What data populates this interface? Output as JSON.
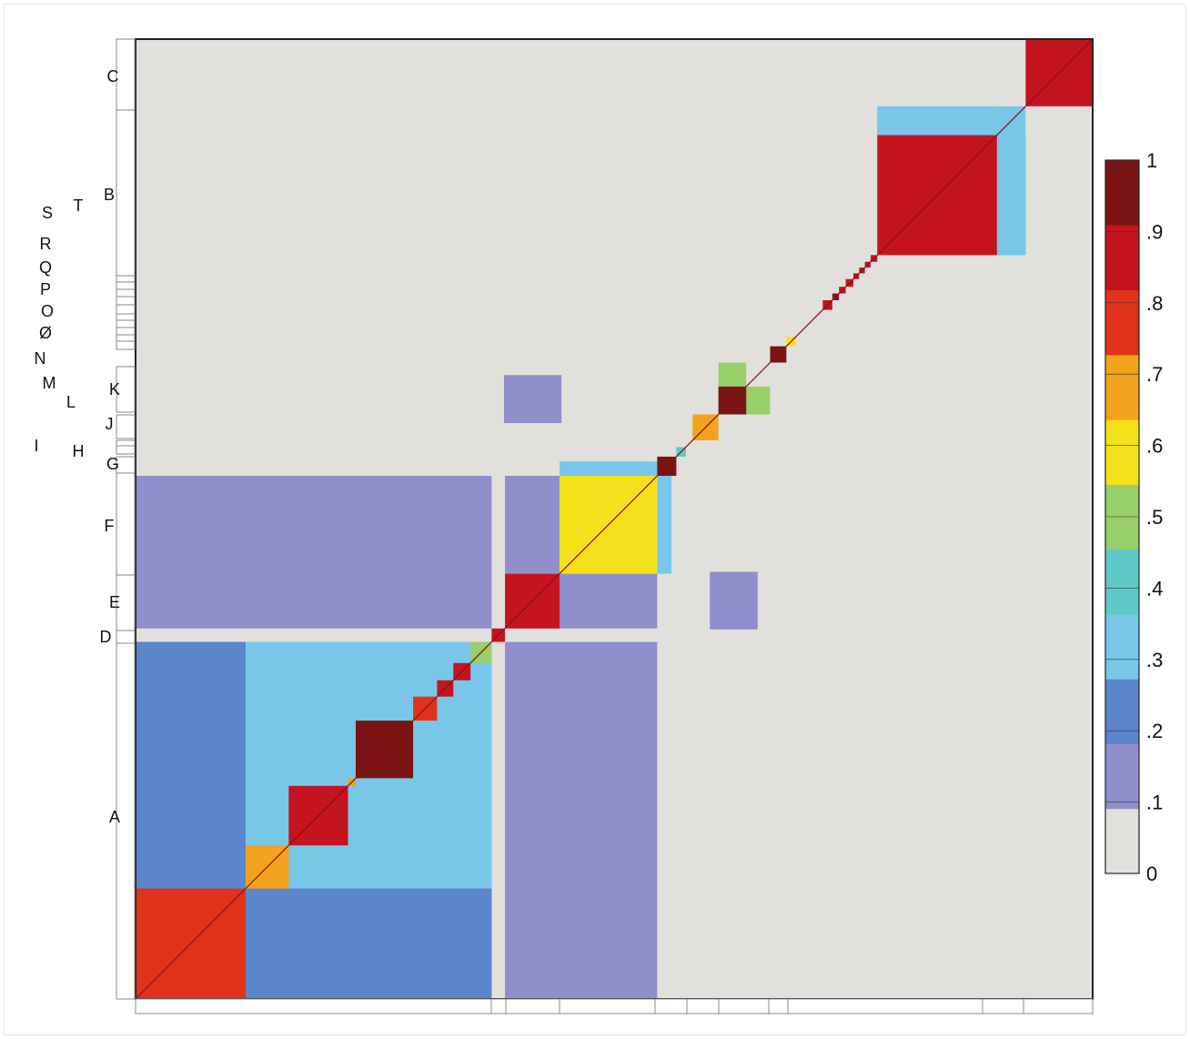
{
  "chart_data": {
    "type": "heatmap",
    "title": "",
    "xlabel": "",
    "ylabel": "",
    "matrix_note": "symmetric similarity matrix; clusters along diagonal, listed bottom-left to top-right",
    "colorbar": {
      "range": [
        0,
        1
      ],
      "tick_labels": [
        "1",
        ".9",
        ".8",
        ".7",
        ".6",
        ".5",
        ".4",
        ".3",
        ".2",
        ".1",
        "0"
      ],
      "tick_values": [
        1,
        0.9,
        0.8,
        0.7,
        0.6,
        0.5,
        0.4,
        0.3,
        0.2,
        0.1,
        0
      ],
      "colors": [
        "#e2e0dc",
        "#8f8fcc",
        "#5b86cc",
        "#79c7e8",
        "#5fc9c9",
        "#97cf6a",
        "#f4e11a",
        "#f2a21c",
        "#e2321c",
        "#c41420",
        "#7a1414"
      ]
    },
    "background_value": 0.02,
    "clusters": [
      {
        "label": "",
        "start": 0.0,
        "end": 0.115,
        "value": 0.75
      },
      {
        "label": "",
        "start": 0.115,
        "end": 0.16,
        "value": 0.68
      },
      {
        "label": "",
        "start": 0.16,
        "end": 0.222,
        "value": 0.93
      },
      {
        "label": "",
        "start": 0.222,
        "end": 0.23,
        "value": 0.7
      },
      {
        "label": "",
        "start": 0.23,
        "end": 0.29,
        "value": 0.95
      },
      {
        "label": "",
        "start": 0.29,
        "end": 0.315,
        "value": 0.75
      },
      {
        "label": "",
        "start": 0.315,
        "end": 0.332,
        "value": 0.93
      },
      {
        "label": "",
        "start": 0.332,
        "end": 0.35,
        "value": 0.85
      },
      {
        "label": "",
        "start": 0.35,
        "end": 0.372,
        "value": 0.5
      },
      {
        "label": "D",
        "start": 0.372,
        "end": 0.386,
        "value": 0.93
      },
      {
        "label": "E",
        "start": 0.386,
        "end": 0.443,
        "value": 0.88
      },
      {
        "label": "F",
        "start": 0.443,
        "end": 0.545,
        "value": 0.58
      },
      {
        "label": "G",
        "start": 0.545,
        "end": 0.565,
        "value": 0.96
      },
      {
        "label": "H",
        "start": 0.565,
        "end": 0.575,
        "value": 0.4
      },
      {
        "label": "J",
        "start": 0.582,
        "end": 0.609,
        "value": 0.72
      },
      {
        "label": "K",
        "start": 0.609,
        "end": 0.638,
        "value": 0.96
      },
      {
        "label": "L",
        "start": 0.663,
        "end": 0.68,
        "value": 0.97
      },
      {
        "label": "M",
        "start": 0.68,
        "end": 0.69,
        "value": 0.6
      },
      {
        "label": "N",
        "start": 0.718,
        "end": 0.728,
        "value": 0.88
      },
      {
        "label": "Ø",
        "start": 0.728,
        "end": 0.735,
        "value": 0.95
      },
      {
        "label": "O",
        "start": 0.735,
        "end": 0.742,
        "value": 0.9
      },
      {
        "label": "P",
        "start": 0.742,
        "end": 0.75,
        "value": 0.92
      },
      {
        "label": "Q",
        "start": 0.75,
        "end": 0.756,
        "value": 0.9
      },
      {
        "label": "R",
        "start": 0.756,
        "end": 0.762,
        "value": 0.92
      },
      {
        "label": "S",
        "start": 0.762,
        "end": 0.768,
        "value": 0.9
      },
      {
        "label": "T",
        "start": 0.768,
        "end": 0.775,
        "value": 0.92
      },
      {
        "label": "B",
        "start": 0.775,
        "end": 0.9,
        "value": 0.9
      },
      {
        "label": "C",
        "start": 0.93,
        "end": 1.0,
        "value": 0.9
      }
    ],
    "row_labels": [
      "C",
      "B",
      "S",
      "T",
      "R",
      "Q",
      "P",
      "O",
      "Ø",
      "N",
      "M",
      "L",
      "K",
      "J",
      "I",
      "H",
      "G",
      "F",
      "E",
      "D",
      "A"
    ]
  }
}
